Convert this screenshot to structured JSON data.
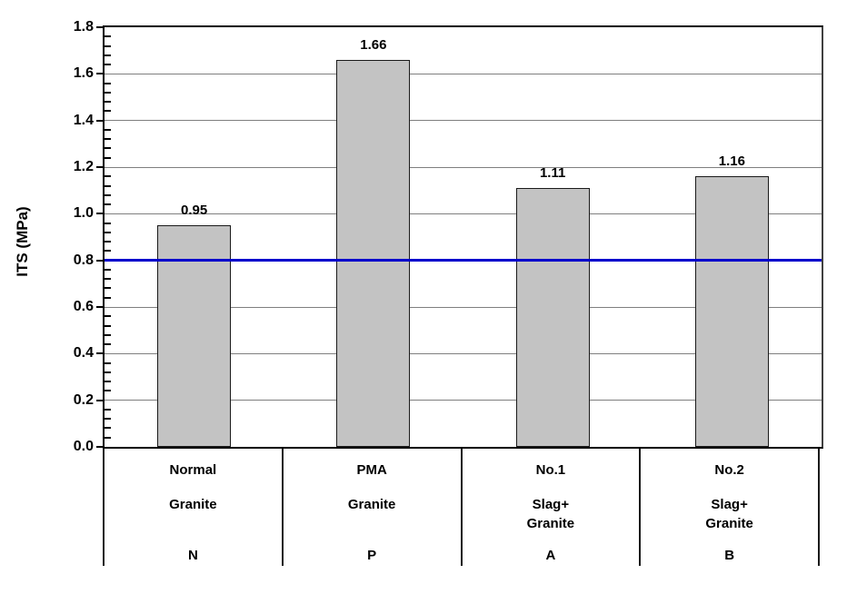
{
  "chart_data": {
    "type": "bar",
    "title": "",
    "ylabel": "ITS (MPa)",
    "xlabel": "",
    "ylim": [
      0,
      1.8
    ],
    "ytick_step": 0.2,
    "minor_tick_step": 0.04,
    "grid": "horizontal",
    "legend": "none",
    "yticks": [
      "1.8",
      "1.6",
      "1.4",
      "1.2",
      "1.0",
      "0.8",
      "0.6",
      "0.4",
      "0.2",
      "0.0"
    ],
    "categories": [
      {
        "group": "Normal",
        "material": "Granite",
        "code": "N"
      },
      {
        "group": "PMA",
        "material": "Granite",
        "code": "P"
      },
      {
        "group": "No.1",
        "material": "Slag+\nGranite",
        "code": "A"
      },
      {
        "group": "No.2",
        "material": "Slag+\nGranite",
        "code": "B"
      }
    ],
    "values": [
      0.95,
      1.66,
      1.11,
      1.16
    ],
    "value_labels": [
      "0.95",
      "1.66",
      "1.11",
      "1.16"
    ],
    "reference_line": {
      "value": 0.8,
      "color": "#0000cc"
    },
    "colors": {
      "bar_fill": "#c3c3c3",
      "bar_border": "#1a1a1a",
      "gridline": "#7f7f7f",
      "axis": "#000000",
      "text": "#000000"
    }
  }
}
